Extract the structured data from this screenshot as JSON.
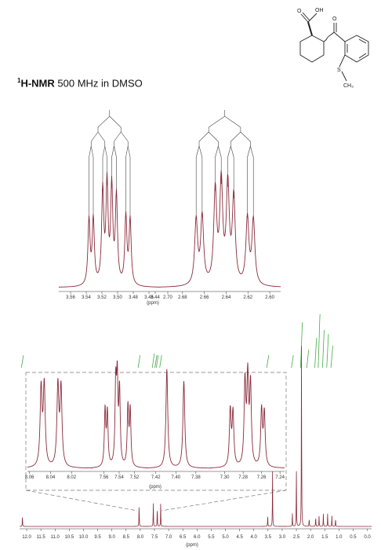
{
  "title": {
    "sup": "1",
    "bold": "H-NMR",
    "rest": " 500 MHz in DMSO"
  },
  "structure": {
    "atom_O_top": "OH",
    "atom_O_ketone": "O",
    "atom_S": "S",
    "atom_CH3": "CH₃"
  },
  "colors": {
    "trace": "#8a2a3a",
    "integral": "#44aa44",
    "tree": "#444444",
    "axis": "#333333",
    "dash": "#777777"
  },
  "chart_data": [
    {
      "type": "line",
      "title": "",
      "xlabel": "(ppm)",
      "x_reversed": true,
      "panel": "multiplet-3.50",
      "xlim": [
        3.575,
        3.445
      ],
      "ylim": [
        0,
        1
      ],
      "ticks": [
        "3.56",
        "3.54",
        "3.52",
        "3.50",
        "3.48",
        "3.46",
        "3.44"
      ],
      "peaks": [
        3.5365,
        3.531,
        3.519,
        3.5135,
        3.5075,
        3.5015,
        3.4895,
        3.484
      ],
      "heights": [
        0.46,
        0.46,
        0.66,
        0.7,
        0.68,
        0.62,
        0.48,
        0.46
      ]
    },
    {
      "type": "line",
      "title": "",
      "xlabel": "",
      "x_reversed": true,
      "panel": "multiplet-2.64",
      "xlim": [
        2.7,
        2.59
      ],
      "ylim": [
        0,
        1
      ],
      "ticks": [
        "2.70",
        "2.68",
        "2.66",
        "2.64",
        "2.62",
        "2.60"
      ],
      "peaks": [
        2.6675,
        2.662,
        2.65,
        2.6445,
        2.6385,
        2.633,
        2.6205,
        2.615
      ],
      "heights": [
        0.46,
        0.48,
        0.66,
        0.71,
        0.69,
        0.61,
        0.47,
        0.46
      ]
    },
    {
      "type": "line",
      "title": "",
      "xlabel": "(ppm)",
      "x_reversed": true,
      "panel": "aromatic-inset",
      "segments": [
        {
          "xlim": [
            8.062,
            8.0
          ],
          "ticks": [
            "8.06",
            "8.04",
            "8.02"
          ],
          "peaks": [
            8.049,
            8.046,
            8.033,
            8.03
          ],
          "heights": [
            0.58,
            0.6,
            0.6,
            0.58
          ]
        },
        {
          "xlim": [
            7.575,
            7.505
          ],
          "ticks": [
            "7.56",
            "7.54",
            "7.52"
          ],
          "peaks": [
            7.5585,
            7.5555,
            7.5445,
            7.5425,
            7.5395,
            7.5285,
            7.5255
          ],
          "heights": [
            0.42,
            0.4,
            0.58,
            0.6,
            0.55,
            0.44,
            0.42
          ]
        },
        {
          "xlim": [
            7.43,
            7.365
          ],
          "ticks": [
            "7.42",
            "7.40",
            "7.38"
          ],
          "peaks": [
            7.409,
            7.392
          ],
          "heights": [
            0.74,
            0.65
          ]
        },
        {
          "xlim": [
            7.315,
            7.235
          ],
          "ticks": [
            "7.30",
            "7.28",
            "7.26",
            "7.24"
          ],
          "peaks": [
            7.294,
            7.291,
            7.278,
            7.275,
            7.272,
            7.26,
            7.257
          ],
          "heights": [
            0.42,
            0.4,
            0.62,
            0.64,
            0.6,
            0.42,
            0.4
          ]
        }
      ]
    },
    {
      "type": "line",
      "title": "",
      "xlabel": "(ppm)",
      "x_reversed": true,
      "panel": "full-spectrum",
      "xlim": [
        12.25,
        -0.15
      ],
      "ticks": [
        "12.0",
        "11.5",
        "11.0",
        "10.5",
        "10.0",
        "9.5",
        "9.0",
        "8.5",
        "8.0",
        "7.5",
        "7.0",
        "6.5",
        "6.0",
        "5.5",
        "5.0",
        "4.5",
        "4.0",
        "3.5",
        "3.0",
        "2.5",
        "2.0",
        "1.5",
        "1.0",
        "0.5",
        "0.0"
      ],
      "peaks": [
        12.15,
        8.04,
        7.54,
        7.4,
        7.28,
        3.51,
        3.34,
        2.64,
        2.5,
        2.32,
        2.05,
        1.82,
        1.7,
        1.55,
        1.4,
        1.25,
        1.12
      ],
      "heights": [
        0.05,
        0.11,
        0.12,
        0.1,
        0.11,
        0.05,
        0.26,
        0.06,
        0.28,
        0.88,
        0.04,
        0.05,
        0.05,
        0.06,
        0.06,
        0.05,
        0.04
      ],
      "integrals": [
        12.15,
        8.04,
        7.54,
        7.45,
        7.4,
        7.28,
        3.51,
        2.64,
        2.32,
        2.1,
        1.82,
        1.7,
        1.55,
        1.4,
        1.25
      ]
    }
  ]
}
